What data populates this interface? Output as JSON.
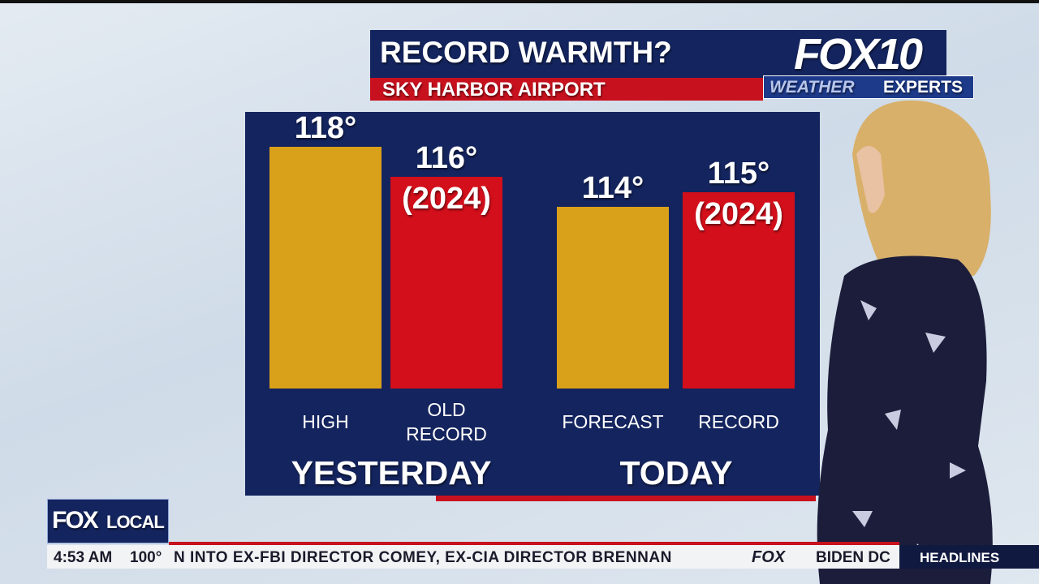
{
  "chart_data": {
    "type": "bar",
    "title": "RECORD WARMTH?",
    "subtitle": "SKY HARBOR AIRPORT",
    "categories": [
      "HIGH",
      "OLD RECORD",
      "FORECAST",
      "RECORD"
    ],
    "values": [
      118,
      116,
      114,
      115
    ],
    "value_labels": [
      "118°",
      "116°",
      "114°",
      "115°"
    ],
    "sublabels": [
      null,
      "(2024)",
      null,
      "(2024)"
    ],
    "colors": [
      "#d9a01a",
      "#d20f1b",
      "#d9a01a",
      "#d20f1b"
    ],
    "groups": [
      "YESTERDAY",
      "TODAY"
    ],
    "ylim": [
      102,
      119
    ]
  },
  "branding": {
    "station": "FOX10",
    "segment": "WEATHER",
    "segment2": "EXPERTS",
    "local": "FOX",
    "local2": "LOCAL"
  },
  "ticker": {
    "time": "4:53 AM",
    "temp": "100°",
    "text": "N INTO EX-FBI DIRECTOR COMEY, EX-CIA DIRECTOR BRENNAN",
    "network": "FOX",
    "next": "BIDEN DC",
    "section": "HEADLINES"
  }
}
